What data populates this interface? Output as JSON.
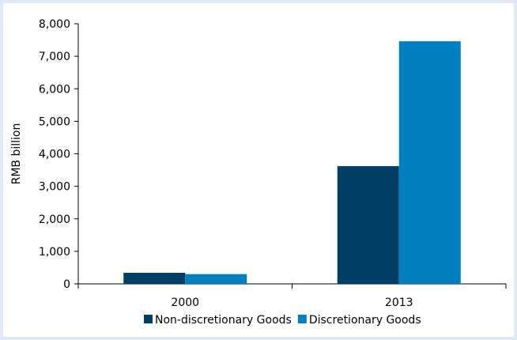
{
  "chart_data": {
    "type": "bar",
    "title": "",
    "xlabel": "",
    "ylabel": "RMB billion",
    "categories": [
      "2000",
      "2013"
    ],
    "series": [
      {
        "name": "Non-discretionary Goods",
        "values": [
          340,
          3620
        ]
      },
      {
        "name": "Discretionary Goods",
        "values": [
          300,
          7460
        ]
      }
    ],
    "ylim": [
      0,
      8000
    ],
    "yticks": [
      0,
      1000,
      2000,
      3000,
      4000,
      5000,
      6000,
      7000,
      8000
    ],
    "ytick_labels": [
      "0",
      "1,000",
      "2,000",
      "3,000",
      "4,000",
      "5,000",
      "6,000",
      "7,000",
      "8,000"
    ],
    "grid": false,
    "legend_position": "bottom",
    "colors": [
      "#003f63",
      "#0080c0"
    ]
  }
}
